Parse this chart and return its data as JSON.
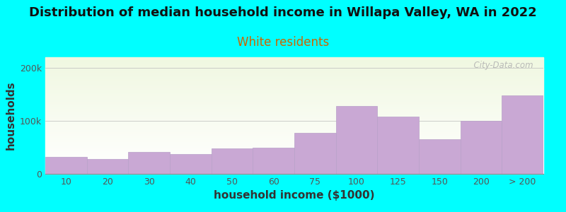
{
  "title": "Distribution of median household income in Willapa Valley, WA in 2022",
  "subtitle": "White residents",
  "xlabel": "household income ($1000)",
  "ylabel": "households",
  "background_color": "#00FFFF",
  "bar_color": "#c9a8d4",
  "bar_edge_color": "#b8a0c8",
  "categories": [
    "10",
    "20",
    "30",
    "40",
    "50",
    "60",
    "75",
    "100",
    "125",
    "150",
    "200",
    "> 200"
  ],
  "values": [
    32000,
    28000,
    42000,
    38000,
    48000,
    50000,
    78000,
    128000,
    108000,
    65000,
    100000,
    148000
  ],
  "ylim": [
    0,
    220000
  ],
  "ytick_labels": [
    "0",
    "100k",
    "200k"
  ],
  "ytick_values": [
    0,
    100000,
    200000
  ],
  "watermark": "  City-Data.com",
  "title_fontsize": 13,
  "subtitle_fontsize": 12,
  "axis_label_fontsize": 11,
  "tick_fontsize": 9,
  "subtitle_color": "#cc6600"
}
